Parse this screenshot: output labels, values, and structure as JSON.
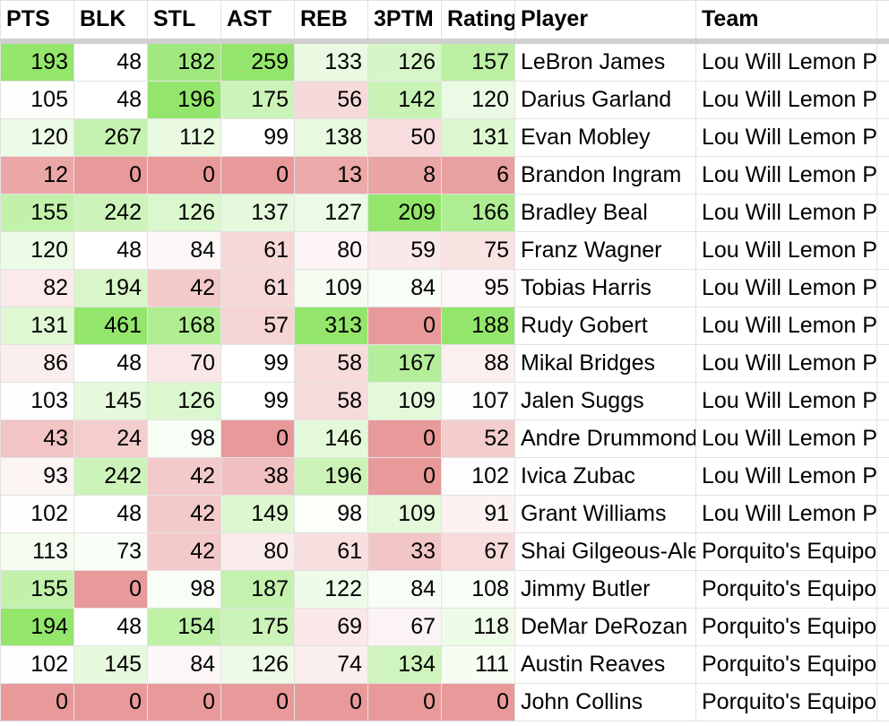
{
  "headers": [
    "PTS",
    "BLK",
    "STL",
    "AST",
    "REB",
    "3PTM",
    "Rating",
    "Player",
    "Team",
    ""
  ],
  "colors": {
    "high": "#93e66b",
    "low": "#e89a9a",
    "mid": "#ffffff"
  },
  "rows": [
    {
      "pts": 193,
      "blk": 48,
      "stl": 182,
      "ast": 259,
      "reb": 133,
      "tpm": 126,
      "rating": 157,
      "player": "LeBron James",
      "team": "Lou Will Lemon Pepper Wings"
    },
    {
      "pts": 105,
      "blk": 48,
      "stl": 196,
      "ast": 175,
      "reb": 56,
      "tpm": 142,
      "rating": 120,
      "player": "Darius Garland",
      "team": "Lou Will Lemon Pepper Wings"
    },
    {
      "pts": 120,
      "blk": 267,
      "stl": 112,
      "ast": 99,
      "reb": 138,
      "tpm": 50,
      "rating": 131,
      "player": "Evan Mobley",
      "team": "Lou Will Lemon Pepper Wings"
    },
    {
      "pts": 12,
      "blk": 0,
      "stl": 0,
      "ast": 0,
      "reb": 13,
      "tpm": 8,
      "rating": 6,
      "player": "Brandon Ingram",
      "team": "Lou Will Lemon Pepper Wings"
    },
    {
      "pts": 155,
      "blk": 242,
      "stl": 126,
      "ast": 137,
      "reb": 127,
      "tpm": 209,
      "rating": 166,
      "player": "Bradley Beal",
      "team": "Lou Will Lemon Pepper Wings"
    },
    {
      "pts": 120,
      "blk": 48,
      "stl": 84,
      "ast": 61,
      "reb": 80,
      "tpm": 59,
      "rating": 75,
      "player": "Franz Wagner",
      "team": "Lou Will Lemon Pepper Wings"
    },
    {
      "pts": 82,
      "blk": 194,
      "stl": 42,
      "ast": 61,
      "reb": 109,
      "tpm": 84,
      "rating": 95,
      "player": "Tobias Harris",
      "team": "Lou Will Lemon Pepper Wings"
    },
    {
      "pts": 131,
      "blk": 461,
      "stl": 168,
      "ast": 57,
      "reb": 313,
      "tpm": 0,
      "rating": 188,
      "player": "Rudy Gobert",
      "team": "Lou Will Lemon Pepper Wings"
    },
    {
      "pts": 86,
      "blk": 48,
      "stl": 70,
      "ast": 99,
      "reb": 58,
      "tpm": 167,
      "rating": 88,
      "player": "Mikal Bridges",
      "team": "Lou Will Lemon Pepper Wings"
    },
    {
      "pts": 103,
      "blk": 145,
      "stl": 126,
      "ast": 99,
      "reb": 58,
      "tpm": 109,
      "rating": 107,
      "player": "Jalen Suggs",
      "team": "Lou Will Lemon Pepper Wings"
    },
    {
      "pts": 43,
      "blk": 24,
      "stl": 98,
      "ast": 0,
      "reb": 146,
      "tpm": 0,
      "rating": 52,
      "player": "Andre Drummond",
      "team": "Lou Will Lemon Pepper Wings"
    },
    {
      "pts": 93,
      "blk": 242,
      "stl": 42,
      "ast": 38,
      "reb": 196,
      "tpm": 0,
      "rating": 102,
      "player": "Ivica Zubac",
      "team": "Lou Will Lemon Pepper Wings"
    },
    {
      "pts": 102,
      "blk": 48,
      "stl": 42,
      "ast": 149,
      "reb": 98,
      "tpm": 109,
      "rating": 91,
      "player": "Grant Williams",
      "team": "Lou Will Lemon Pepper Wings"
    },
    {
      "pts": 113,
      "blk": 73,
      "stl": 42,
      "ast": 80,
      "reb": 61,
      "tpm": 33,
      "rating": 67,
      "player": "Shai Gilgeous-Alexander",
      "team": "Porquito's Equipo"
    },
    {
      "pts": 155,
      "blk": 0,
      "stl": 98,
      "ast": 187,
      "reb": 122,
      "tpm": 84,
      "rating": 108,
      "player": "Jimmy Butler",
      "team": "Porquito's Equipo"
    },
    {
      "pts": 194,
      "blk": 48,
      "stl": 154,
      "ast": 175,
      "reb": 69,
      "tpm": 67,
      "rating": 118,
      "player": "DeMar DeRozan",
      "team": "Porquito's Equipo"
    },
    {
      "pts": 102,
      "blk": 145,
      "stl": 84,
      "ast": 126,
      "reb": 74,
      "tpm": 134,
      "rating": 111,
      "player": "Austin Reaves",
      "team": "Porquito's Equipo"
    },
    {
      "pts": 0,
      "blk": 0,
      "stl": 0,
      "ast": 0,
      "reb": 0,
      "tpm": 0,
      "rating": 0,
      "player": "John Collins",
      "team": "Porquito's Equipo"
    }
  ]
}
